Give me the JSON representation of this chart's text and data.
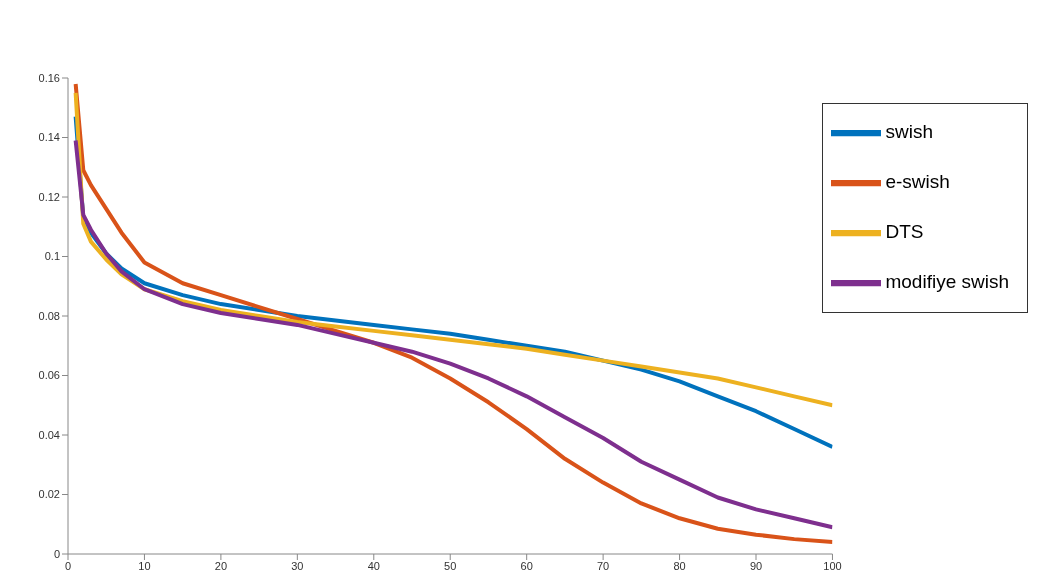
{
  "chart_data": {
    "type": "line",
    "x": [
      1,
      2,
      3,
      5,
      7,
      10,
      15,
      20,
      25,
      30,
      35,
      40,
      45,
      50,
      55,
      60,
      65,
      70,
      75,
      80,
      85,
      90,
      95,
      100
    ],
    "series": [
      {
        "name": "swish",
        "color": "#0072bd",
        "values": [
          0.147,
          0.113,
          0.108,
          0.101,
          0.096,
          0.091,
          0.087,
          0.084,
          0.082,
          0.08,
          0.0785,
          0.077,
          0.0755,
          0.074,
          0.072,
          0.07,
          0.068,
          0.065,
          0.062,
          0.058,
          0.053,
          0.048,
          0.042,
          0.036
        ]
      },
      {
        "name": "e-swish",
        "color": "#d95319",
        "values": [
          0.158,
          0.129,
          0.124,
          0.116,
          0.108,
          0.098,
          0.091,
          0.087,
          0.083,
          0.079,
          0.075,
          0.071,
          0.066,
          0.059,
          0.051,
          0.042,
          0.032,
          0.024,
          0.017,
          0.012,
          0.0085,
          0.0065,
          0.005,
          0.004
        ]
      },
      {
        "name": "DTS",
        "color": "#edb120",
        "values": [
          0.155,
          0.111,
          0.105,
          0.099,
          0.094,
          0.089,
          0.085,
          0.082,
          0.08,
          0.078,
          0.0765,
          0.075,
          0.0735,
          0.072,
          0.0705,
          0.069,
          0.067,
          0.065,
          0.063,
          0.061,
          0.059,
          0.056,
          0.053,
          0.05
        ]
      },
      {
        "name": "modifiye swish",
        "color": "#7e2f8e",
        "values": [
          0.139,
          0.114,
          0.109,
          0.101,
          0.095,
          0.089,
          0.084,
          0.081,
          0.079,
          0.077,
          0.074,
          0.071,
          0.068,
          0.064,
          0.059,
          0.053,
          0.046,
          0.039,
          0.031,
          0.025,
          0.019,
          0.015,
          0.012,
          0.009
        ]
      }
    ],
    "xlim": [
      0,
      100
    ],
    "xticks": [
      0,
      10,
      20,
      30,
      40,
      50,
      60,
      70,
      80,
      90,
      100
    ],
    "ylim": [
      0,
      0.16
    ],
    "yticks": [
      0,
      0.02,
      0.04,
      0.06,
      0.08,
      0.1,
      0.12,
      0.14,
      0.16
    ],
    "grid": false,
    "legend": "top right",
    "marker": "none",
    "line_style": "solid"
  }
}
